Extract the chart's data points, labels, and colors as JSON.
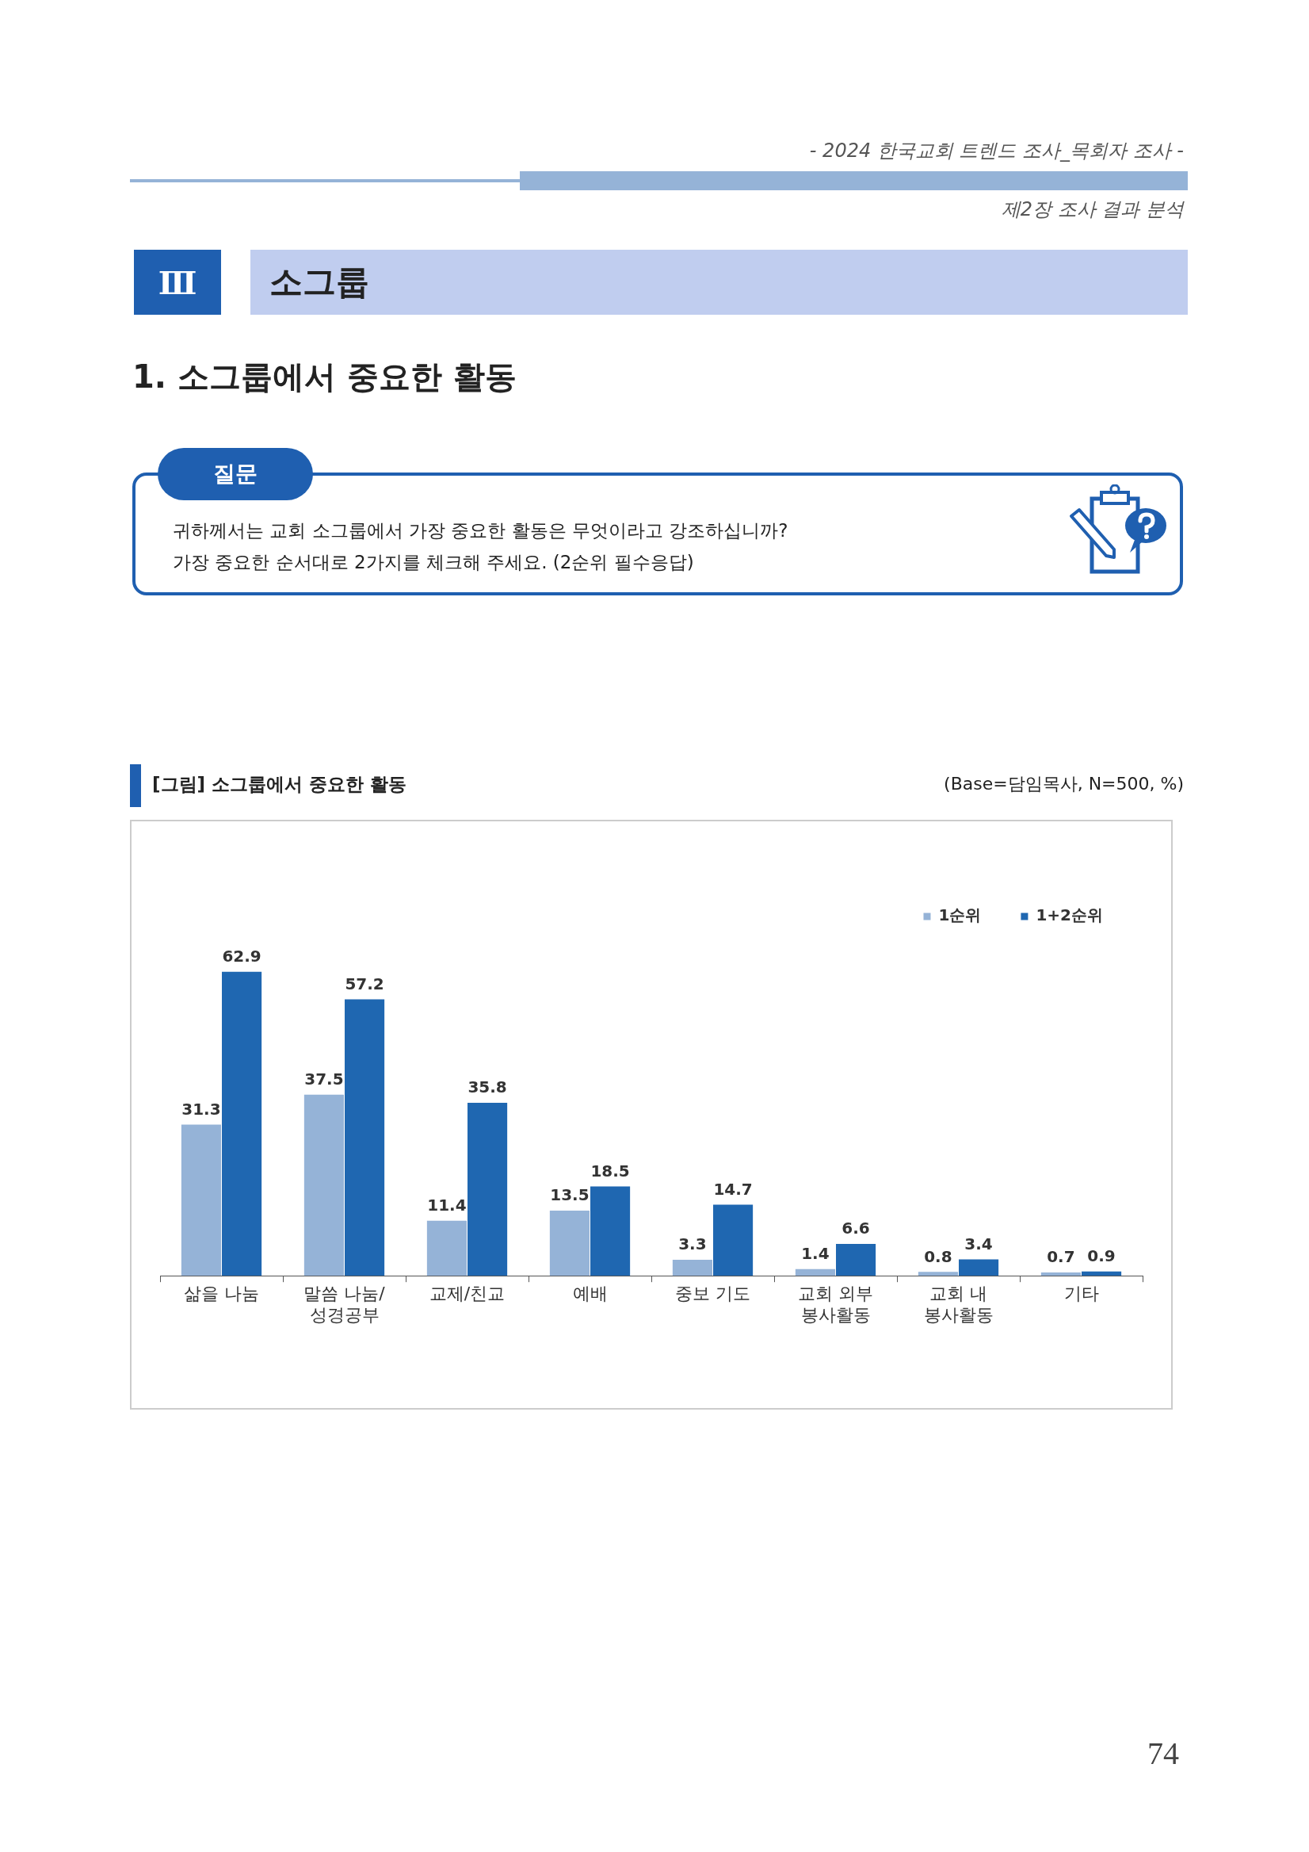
{
  "chart_data": {
    "type": "bar",
    "title": "[그림] 소그룹에서 중요한 활동",
    "subtitle": "(Base=담임목사, N=500, %)",
    "categories": [
      "삶을 나눔",
      "말씀 나눔/\n성경공부",
      "교제/친교",
      "예배",
      "중보 기도",
      "교회 외부\n봉사활동",
      "교회 내\n봉사활동",
      "기타"
    ],
    "series": [
      {
        "name": "1순위",
        "color": "#95b3d7",
        "values": [
          31.3,
          37.5,
          11.4,
          13.5,
          3.3,
          1.4,
          0.8,
          0.7
        ]
      },
      {
        "name": "1+2순위",
        "color": "#1f67b1",
        "values": [
          62.9,
          57.2,
          35.8,
          18.5,
          14.7,
          6.6,
          3.4,
          0.9
        ]
      }
    ],
    "data_labels": true,
    "legend": "top right",
    "annotations": [
      "- 2024 한국교회 트렌드 조사_목회자 조사 -",
      "제2장 조사 결과 분석",
      "Ⅲ",
      "소그룹",
      "1. 소그룹에서 중요한 활동",
      "질문",
      "귀하께서는 교회 소그룹에서 가장 중요한 활동은 무엇이라고 강조하십니까?",
      "가장 중요한 순서대로 2가지를 체크해 주세요. (2순위 필수응답)",
      "74"
    ]
  }
}
